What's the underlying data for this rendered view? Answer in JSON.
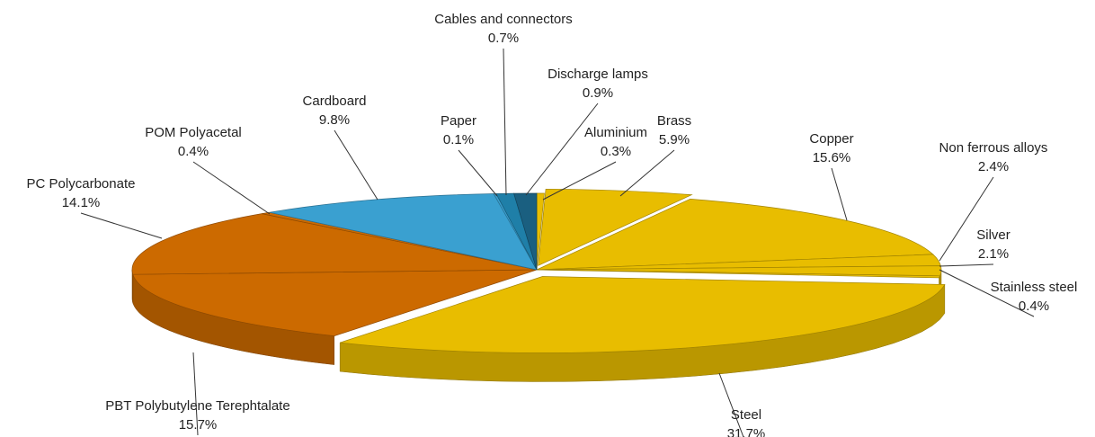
{
  "chart_data": {
    "type": "pie",
    "categories": [
      "Aluminium",
      "Brass",
      "Copper",
      "Non ferrous alloys",
      "Silver",
      "Stainless steel",
      "Steel",
      "PBT Polybutylene Terephtalate",
      "PC Polycarbonate",
      "POM Polyacetal",
      "Cardboard",
      "Paper",
      "Cables and connectors",
      "Discharge lamps"
    ],
    "values": [
      0.3,
      5.9,
      15.6,
      2.4,
      2.1,
      0.4,
      31.7,
      15.7,
      14.1,
      0.4,
      9.8,
      0.1,
      0.7,
      0.9
    ],
    "value_labels": [
      "0.3%",
      "5.9%",
      "15.6%",
      "2.4%",
      "2.1%",
      "0.4%",
      "31.7%",
      "15.7%",
      "14.1%",
      "0.4%",
      "9.8%",
      "0.1%",
      "0.7%",
      "0.9%"
    ],
    "colors": [
      "#e8bd00",
      "#e8bd00",
      "#e8bd00",
      "#e8bd00",
      "#e8bd00",
      "#e8bd00",
      "#e8bd00",
      "#cc6a00",
      "#cc6a00",
      "#cc6a00",
      "#3aa0d0",
      "#3aa0d0",
      "#1f7fa8",
      "#1a5f80"
    ]
  }
}
